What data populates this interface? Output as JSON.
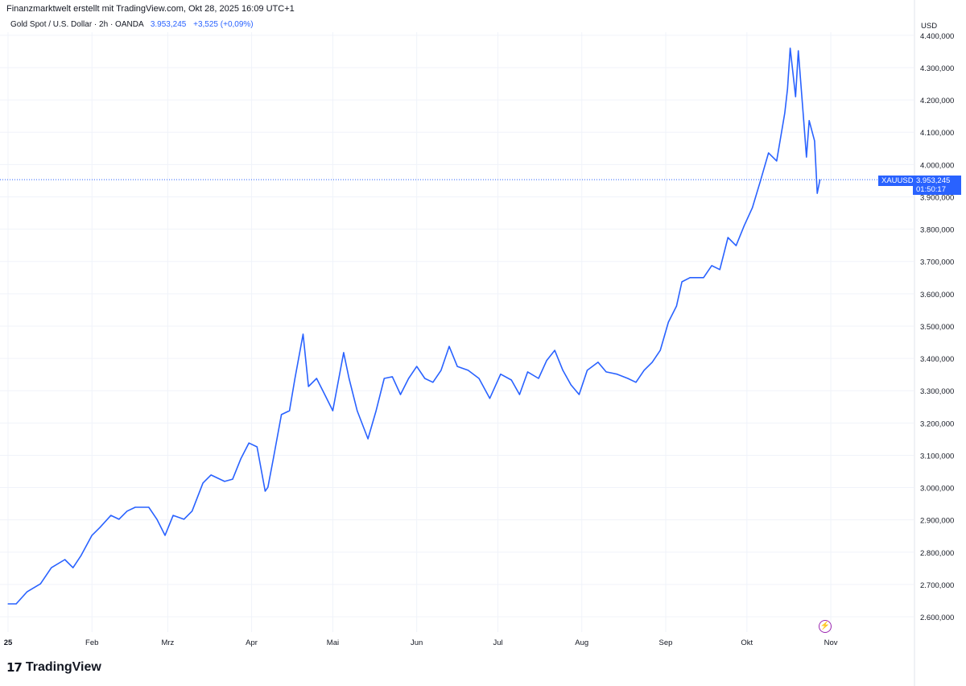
{
  "header": {
    "created": "Finanzmarktwelt erstellt mit TradingView.com, Okt 28, 2025 16:09 UTC+1",
    "symbol_desc": "Gold Spot / U.S. Dollar · 2h · OANDA",
    "price": "3.953,245",
    "change": "+3,525 (+0,09%)"
  },
  "currency": "USD",
  "price_tag": {
    "symbol": "XAUUSD",
    "price": "3.953,245",
    "countdown": "01:50:17"
  },
  "logo": "TradingView",
  "colors": {
    "line": "#2962ff",
    "grid": "#f0f3fa"
  },
  "chart_data": {
    "type": "line",
    "title": "",
    "ylim": [
      2550,
      4420
    ],
    "grid": true,
    "y_ticks": [
      "2.600,000",
      "2.700,000",
      "2.800,000",
      "2.900,000",
      "3.000,000",
      "3.100,000",
      "3.200,000",
      "3.300,000",
      "3.400,000",
      "3.500,000",
      "3.600,000",
      "3.700,000",
      "3.800,000",
      "3.900,000",
      "4.000,000",
      "4.100,000",
      "4.200,000",
      "4.300,000",
      "4.400,000"
    ],
    "y_tick_values": [
      2600,
      2700,
      2800,
      2900,
      3000,
      3100,
      3200,
      3300,
      3400,
      3500,
      3600,
      3700,
      3800,
      3900,
      4000,
      4100,
      4200,
      4300,
      4400
    ],
    "x_ticks": [
      {
        "label": "25",
        "date": "2025-01-01"
      },
      {
        "label": "Feb",
        "date": "2025-02-01"
      },
      {
        "label": "Mrz",
        "date": "2025-03-01"
      },
      {
        "label": "Apr",
        "date": "2025-04-01"
      },
      {
        "label": "Mai",
        "date": "2025-05-01"
      },
      {
        "label": "Jun",
        "date": "2025-06-01"
      },
      {
        "label": "Jul",
        "date": "2025-07-01"
      },
      {
        "label": "Aug",
        "date": "2025-08-01"
      },
      {
        "label": "Sep",
        "date": "2025-09-01"
      },
      {
        "label": "Okt",
        "date": "2025-10-01"
      },
      {
        "label": "Nov",
        "date": "2025-11-01"
      }
    ],
    "last_value": 3953.245,
    "series": [
      {
        "points": [
          [
            "2025-01-01",
            2640
          ],
          [
            "2025-01-04",
            2640
          ],
          [
            "2025-01-08",
            2677
          ],
          [
            "2025-01-13",
            2702
          ],
          [
            "2025-01-17",
            2752
          ],
          [
            "2025-01-22",
            2777
          ],
          [
            "2025-01-25",
            2752
          ],
          [
            "2025-01-28",
            2790
          ],
          [
            "2025-02-01",
            2852
          ],
          [
            "2025-02-04",
            2877
          ],
          [
            "2025-02-08",
            2914
          ],
          [
            "2025-02-11",
            2902
          ],
          [
            "2025-02-14",
            2927
          ],
          [
            "2025-02-17",
            2939
          ],
          [
            "2025-02-22",
            2939
          ],
          [
            "2025-02-25",
            2902
          ],
          [
            "2025-02-28",
            2852
          ],
          [
            "2025-03-03",
            2914
          ],
          [
            "2025-03-07",
            2902
          ],
          [
            "2025-03-10",
            2927
          ],
          [
            "2025-03-14",
            3014
          ],
          [
            "2025-03-17",
            3039
          ],
          [
            "2025-03-22",
            3019
          ],
          [
            "2025-03-25",
            3026
          ],
          [
            "2025-03-28",
            3089
          ],
          [
            "2025-03-31",
            3138
          ],
          [
            "2025-04-03",
            3126
          ],
          [
            "2025-04-06",
            2989
          ],
          [
            "2025-04-07",
            3001
          ],
          [
            "2025-04-09",
            3089
          ],
          [
            "2025-04-12",
            3226
          ],
          [
            "2025-04-15",
            3238
          ],
          [
            "2025-04-17",
            3338
          ],
          [
            "2025-04-20",
            3475
          ],
          [
            "2025-04-22",
            3313
          ],
          [
            "2025-04-25",
            3338
          ],
          [
            "2025-04-28",
            3288
          ],
          [
            "2025-05-01",
            3238
          ],
          [
            "2025-05-05",
            3418
          ],
          [
            "2025-05-07",
            3338
          ],
          [
            "2025-05-10",
            3238
          ],
          [
            "2025-05-14",
            3151
          ],
          [
            "2025-05-17",
            3238
          ],
          [
            "2025-05-20",
            3338
          ],
          [
            "2025-05-23",
            3343
          ],
          [
            "2025-05-26",
            3288
          ],
          [
            "2025-05-29",
            3338
          ],
          [
            "2025-06-01",
            3375
          ],
          [
            "2025-06-04",
            3338
          ],
          [
            "2025-06-07",
            3326
          ],
          [
            "2025-06-10",
            3363
          ],
          [
            "2025-06-13",
            3437
          ],
          [
            "2025-06-16",
            3375
          ],
          [
            "2025-06-20",
            3363
          ],
          [
            "2025-06-24",
            3338
          ],
          [
            "2025-06-28",
            3276
          ],
          [
            "2025-07-02",
            3351
          ],
          [
            "2025-07-06",
            3333
          ],
          [
            "2025-07-09",
            3288
          ],
          [
            "2025-07-12",
            3358
          ],
          [
            "2025-07-16",
            3338
          ],
          [
            "2025-07-19",
            3393
          ],
          [
            "2025-07-22",
            3425
          ],
          [
            "2025-07-25",
            3363
          ],
          [
            "2025-07-28",
            3318
          ],
          [
            "2025-07-31",
            3288
          ],
          [
            "2025-08-03",
            3363
          ],
          [
            "2025-08-07",
            3388
          ],
          [
            "2025-08-10",
            3358
          ],
          [
            "2025-08-14",
            3351
          ],
          [
            "2025-08-18",
            3338
          ],
          [
            "2025-08-21",
            3326
          ],
          [
            "2025-08-24",
            3363
          ],
          [
            "2025-08-27",
            3388
          ],
          [
            "2025-08-30",
            3425
          ],
          [
            "2025-09-02",
            3512
          ],
          [
            "2025-09-05",
            3562
          ],
          [
            "2025-09-07",
            3637
          ],
          [
            "2025-09-10",
            3650
          ],
          [
            "2025-09-15",
            3650
          ],
          [
            "2025-09-18",
            3687
          ],
          [
            "2025-09-21",
            3675
          ],
          [
            "2025-09-24",
            3774
          ],
          [
            "2025-09-27",
            3749
          ],
          [
            "2025-09-30",
            3811
          ],
          [
            "2025-10-03",
            3866
          ],
          [
            "2025-10-06",
            3949
          ],
          [
            "2025-10-09",
            4036
          ],
          [
            "2025-10-12",
            4011
          ],
          [
            "2025-10-15",
            4160
          ],
          [
            "2025-10-16",
            4235
          ],
          [
            "2025-10-17",
            4360
          ],
          [
            "2025-10-19",
            4210
          ],
          [
            "2025-10-20",
            4352
          ],
          [
            "2025-10-22",
            4136
          ],
          [
            "2025-10-23",
            4023
          ],
          [
            "2025-10-24",
            4136
          ],
          [
            "2025-10-26",
            4073
          ],
          [
            "2025-10-27",
            3911
          ],
          [
            "2025-10-28",
            3953
          ]
        ]
      }
    ]
  }
}
